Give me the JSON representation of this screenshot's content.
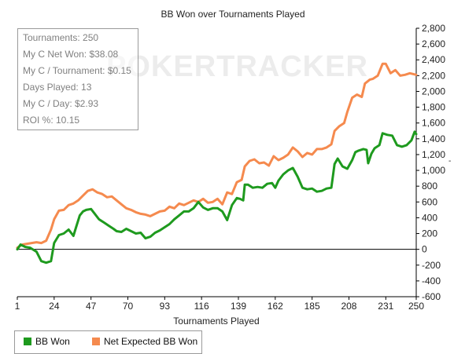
{
  "chart_data": {
    "type": "line",
    "title": "BB Won over Tournaments Played",
    "xlabel": "Tournaments Played",
    "ylabel": "",
    "xlim": [
      1,
      250
    ],
    "ylim": [
      -600,
      2800
    ],
    "x_ticks": [
      1,
      24,
      47,
      70,
      93,
      116,
      139,
      162,
      185,
      208,
      231,
      250
    ],
    "y_ticks": [
      -600,
      -400,
      -200,
      0,
      200,
      400,
      600,
      800,
      1000,
      1200,
      1400,
      1600,
      1800,
      2000,
      2200,
      2400,
      2600,
      2800
    ],
    "y_tick_labels": [
      "-600",
      "-400",
      "-200",
      "0",
      "200",
      "400",
      "600",
      "800",
      "1,000",
      "1,200",
      "1,400",
      "1,600",
      "1,800",
      "2,000",
      "2,200",
      "2,400",
      "2,600",
      "2,800"
    ],
    "legend_position": "bottom-left",
    "series": [
      {
        "name": "BB Won",
        "color": "#1e9a1e",
        "points": [
          [
            1,
            0
          ],
          [
            3,
            60
          ],
          [
            6,
            30
          ],
          [
            9,
            20
          ],
          [
            13,
            -30
          ],
          [
            16,
            -150
          ],
          [
            19,
            -170
          ],
          [
            22,
            -150
          ],
          [
            24,
            80
          ],
          [
            27,
            180
          ],
          [
            30,
            200
          ],
          [
            33,
            250
          ],
          [
            36,
            170
          ],
          [
            38,
            300
          ],
          [
            40,
            430
          ],
          [
            42,
            480
          ],
          [
            44,
            500
          ],
          [
            47,
            510
          ],
          [
            49,
            460
          ],
          [
            52,
            380
          ],
          [
            55,
            340
          ],
          [
            58,
            300
          ],
          [
            61,
            260
          ],
          [
            63,
            230
          ],
          [
            66,
            220
          ],
          [
            69,
            260
          ],
          [
            72,
            230
          ],
          [
            75,
            200
          ],
          [
            78,
            210
          ],
          [
            81,
            140
          ],
          [
            84,
            160
          ],
          [
            87,
            210
          ],
          [
            90,
            240
          ],
          [
            93,
            280
          ],
          [
            96,
            320
          ],
          [
            99,
            380
          ],
          [
            102,
            430
          ],
          [
            105,
            480
          ],
          [
            108,
            480
          ],
          [
            111,
            520
          ],
          [
            114,
            600
          ],
          [
            117,
            530
          ],
          [
            120,
            500
          ],
          [
            123,
            520
          ],
          [
            126,
            520
          ],
          [
            129,
            480
          ],
          [
            132,
            370
          ],
          [
            135,
            560
          ],
          [
            138,
            650
          ],
          [
            140,
            640
          ],
          [
            142,
            620
          ],
          [
            143,
            820
          ],
          [
            145,
            820
          ],
          [
            148,
            780
          ],
          [
            151,
            790
          ],
          [
            154,
            780
          ],
          [
            157,
            830
          ],
          [
            160,
            840
          ],
          [
            162,
            780
          ],
          [
            164,
            870
          ],
          [
            167,
            950
          ],
          [
            170,
            1000
          ],
          [
            173,
            1030
          ],
          [
            176,
            920
          ],
          [
            179,
            780
          ],
          [
            182,
            760
          ],
          [
            185,
            770
          ],
          [
            188,
            730
          ],
          [
            191,
            740
          ],
          [
            194,
            770
          ],
          [
            197,
            780
          ],
          [
            199,
            1080
          ],
          [
            201,
            1150
          ],
          [
            204,
            1050
          ],
          [
            207,
            1020
          ],
          [
            210,
            1130
          ],
          [
            212,
            1230
          ],
          [
            214,
            1250
          ],
          [
            217,
            1270
          ],
          [
            219,
            1260
          ],
          [
            220,
            1090
          ],
          [
            222,
            1210
          ],
          [
            224,
            1280
          ],
          [
            227,
            1320
          ],
          [
            229,
            1470
          ],
          [
            232,
            1450
          ],
          [
            235,
            1440
          ],
          [
            238,
            1320
          ],
          [
            241,
            1300
          ],
          [
            244,
            1320
          ],
          [
            247,
            1380
          ],
          [
            249,
            1490
          ],
          [
            250,
            1460
          ]
        ]
      },
      {
        "name": "Net Expected BB Won",
        "color": "#f58a4e",
        "points": [
          [
            1,
            20
          ],
          [
            4,
            60
          ],
          [
            7,
            70
          ],
          [
            10,
            80
          ],
          [
            13,
            90
          ],
          [
            16,
            80
          ],
          [
            19,
            110
          ],
          [
            22,
            250
          ],
          [
            24,
            380
          ],
          [
            27,
            490
          ],
          [
            30,
            500
          ],
          [
            33,
            560
          ],
          [
            36,
            580
          ],
          [
            39,
            620
          ],
          [
            42,
            680
          ],
          [
            45,
            740
          ],
          [
            48,
            760
          ],
          [
            51,
            720
          ],
          [
            54,
            700
          ],
          [
            57,
            660
          ],
          [
            60,
            670
          ],
          [
            63,
            620
          ],
          [
            66,
            570
          ],
          [
            69,
            520
          ],
          [
            72,
            500
          ],
          [
            75,
            470
          ],
          [
            78,
            450
          ],
          [
            81,
            440
          ],
          [
            84,
            420
          ],
          [
            87,
            450
          ],
          [
            90,
            480
          ],
          [
            93,
            490
          ],
          [
            96,
            540
          ],
          [
            99,
            520
          ],
          [
            102,
            580
          ],
          [
            105,
            560
          ],
          [
            108,
            590
          ],
          [
            111,
            620
          ],
          [
            114,
            600
          ],
          [
            117,
            640
          ],
          [
            120,
            590
          ],
          [
            123,
            600
          ],
          [
            126,
            640
          ],
          [
            129,
            570
          ],
          [
            132,
            720
          ],
          [
            135,
            700
          ],
          [
            138,
            850
          ],
          [
            141,
            880
          ],
          [
            143,
            1050
          ],
          [
            146,
            1120
          ],
          [
            149,
            1140
          ],
          [
            152,
            1090
          ],
          [
            155,
            1100
          ],
          [
            158,
            1060
          ],
          [
            161,
            1180
          ],
          [
            164,
            1130
          ],
          [
            167,
            1160
          ],
          [
            170,
            1200
          ],
          [
            173,
            1290
          ],
          [
            176,
            1240
          ],
          [
            179,
            1170
          ],
          [
            182,
            1220
          ],
          [
            185,
            1200
          ],
          [
            188,
            1270
          ],
          [
            191,
            1270
          ],
          [
            194,
            1290
          ],
          [
            197,
            1330
          ],
          [
            199,
            1500
          ],
          [
            202,
            1560
          ],
          [
            205,
            1600
          ],
          [
            207,
            1740
          ],
          [
            210,
            1920
          ],
          [
            213,
            1960
          ],
          [
            216,
            1930
          ],
          [
            218,
            2100
          ],
          [
            221,
            2150
          ],
          [
            223,
            2160
          ],
          [
            226,
            2200
          ],
          [
            229,
            2350
          ],
          [
            231,
            2350
          ],
          [
            234,
            2230
          ],
          [
            237,
            2270
          ],
          [
            240,
            2200
          ],
          [
            243,
            2210
          ],
          [
            246,
            2230
          ],
          [
            250,
            2210
          ]
        ]
      }
    ]
  },
  "stats": [
    "Tournaments: 250",
    "My C Net Won: $38.08",
    "My C / Tournament: $0.15",
    "Days Played: 13",
    "My C / Day: $2.93",
    "ROI %: 10.15"
  ],
  "watermark": "POKERTRACKER",
  "side_mark": "-"
}
